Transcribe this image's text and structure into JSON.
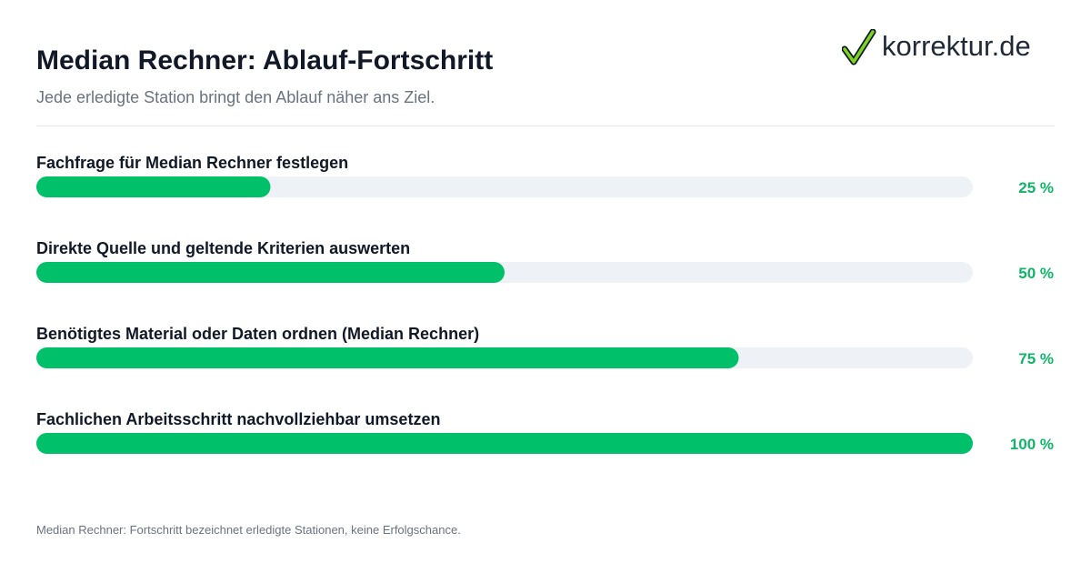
{
  "header": {
    "title": "Median Rechner: Ablauf-Fortschritt",
    "subtitle": "Jede erledigte Station bringt den Ablauf näher ans Ziel."
  },
  "logo": {
    "text": "korrektur.de",
    "icon": "check-icon"
  },
  "colors": {
    "bar_fill": "#00c16a",
    "bar_track": "#eef2f7",
    "label_text": "#111827",
    "value_text": "#10b568",
    "logo_check": "#7dd321"
  },
  "chart_data": {
    "type": "bar",
    "orientation": "horizontal",
    "unit": "%",
    "xlim": [
      0,
      100
    ],
    "grid": false,
    "categories": [
      "Fachfrage für Median Rechner festlegen",
      "Direkte Quelle und geltende Kriterien auswerten",
      "Benötigtes Material oder Daten ordnen (Median Rechner)",
      "Fachlichen Arbeitsschritt nachvollziehbar umsetzen"
    ],
    "values": [
      25,
      50,
      75,
      100
    ],
    "value_labels": [
      "25 %",
      "50 %",
      "75 %",
      "100 %"
    ]
  },
  "footnote": "Median Rechner: Fortschritt bezeichnet erledigte Stationen, keine Erfolgschance."
}
